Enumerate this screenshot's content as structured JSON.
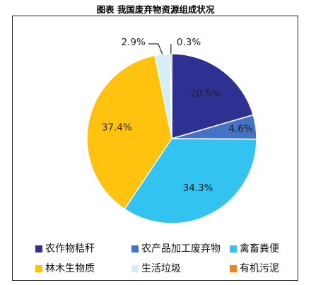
{
  "chart_data": {
    "type": "pie",
    "title": "图表  我国废弃物资源组成状况",
    "slices": [
      {
        "name": "农作物秸秆",
        "value": 20.5,
        "label": "20.5%",
        "color": "#2e3192"
      },
      {
        "name": "农产品加工废弃物",
        "value": 4.6,
        "label": "4.6%",
        "color": "#4472c4"
      },
      {
        "name": "禽畜粪便",
        "value": 34.3,
        "label": "34.3%",
        "color": "#33c3f0"
      },
      {
        "name": "林木生物质",
        "value": 37.4,
        "label": "37.4%",
        "color": "#ffc20e"
      },
      {
        "name": "生活垃圾",
        "value": 2.9,
        "label": "2.9%",
        "color": "#d6eef8"
      },
      {
        "name": "有机污泥",
        "value": 0.3,
        "label": "0.3%",
        "color": "#f58220"
      }
    ],
    "legend_placement": "bottom"
  }
}
